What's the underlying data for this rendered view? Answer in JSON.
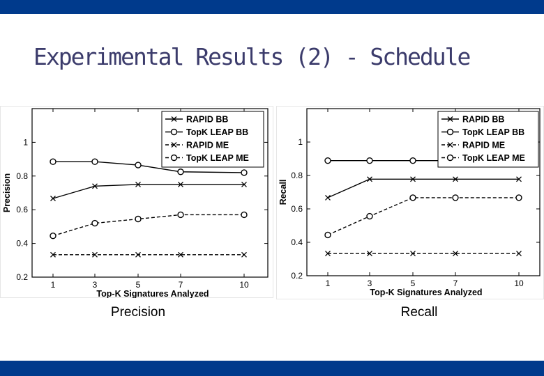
{
  "slide": {
    "title": "Experimental Results (2) - Schedule",
    "accent_color": "#003a8c",
    "caption_left": "Precision",
    "caption_right": "Recall"
  },
  "chart_data": [
    {
      "type": "line",
      "xlabel": "Top-K Signatures Analyzed",
      "ylabel": "Precision",
      "x": [
        1,
        3,
        5,
        7,
        10
      ],
      "xticks": [
        "1",
        "3",
        "5",
        "7",
        "10"
      ],
      "ylim": [
        0.2,
        1.2
      ],
      "yticks": [
        "0.2",
        "0.4",
        "0.6",
        "0.8",
        "1"
      ],
      "legend_position": "top-right",
      "series": [
        {
          "name": "RAPID BB",
          "values": [
            0.667,
            0.74,
            0.75,
            0.75,
            0.75
          ],
          "marker": "x",
          "dash": "solid"
        },
        {
          "name": "TopK LEAP BB",
          "values": [
            0.885,
            0.885,
            0.865,
            0.825,
            0.82
          ],
          "marker": "o",
          "dash": "solid"
        },
        {
          "name": "RAPID ME",
          "values": [
            0.333,
            0.333,
            0.333,
            0.333,
            0.333
          ],
          "marker": "x",
          "dash": "dashed"
        },
        {
          "name": "TopK LEAP ME",
          "values": [
            0.445,
            0.52,
            0.545,
            0.57,
            0.57
          ],
          "marker": "o",
          "dash": "dashed"
        }
      ]
    },
    {
      "type": "line",
      "xlabel": "Top-K Signatures Analyzed",
      "ylabel": "Recall",
      "x": [
        1,
        3,
        5,
        7,
        10
      ],
      "xticks": [
        "1",
        "3",
        "5",
        "7",
        "10"
      ],
      "ylim": [
        0.2,
        1.2
      ],
      "yticks": [
        "0.2",
        "0.4",
        "0.6",
        "0.8",
        "1"
      ],
      "legend_position": "top-right",
      "series": [
        {
          "name": "RAPID BB",
          "values": [
            0.667,
            0.778,
            0.778,
            0.778,
            0.778
          ],
          "marker": "x",
          "dash": "solid"
        },
        {
          "name": "TopK LEAP BB",
          "values": [
            0.889,
            0.889,
            0.889,
            0.889,
            0.889
          ],
          "marker": "o",
          "dash": "solid"
        },
        {
          "name": "RAPID ME",
          "values": [
            0.333,
            0.333,
            0.333,
            0.333,
            0.333
          ],
          "marker": "x",
          "dash": "dashed"
        },
        {
          "name": "TopK LEAP ME",
          "values": [
            0.444,
            0.556,
            0.667,
            0.667,
            0.667
          ],
          "marker": "o",
          "dash": "dashed"
        }
      ]
    }
  ]
}
